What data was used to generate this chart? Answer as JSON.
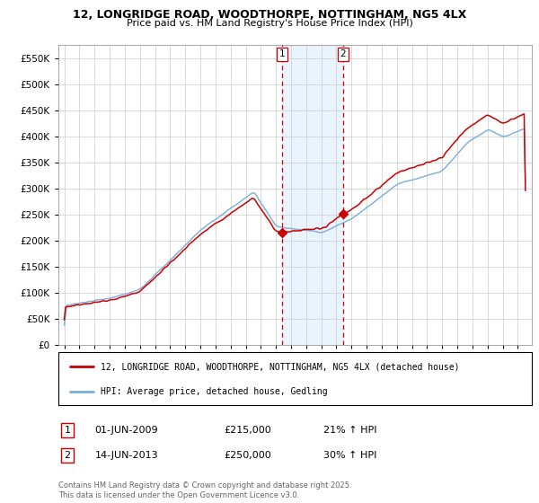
{
  "title": "12, LONGRIDGE ROAD, WOODTHORPE, NOTTINGHAM, NG5 4LX",
  "subtitle": "Price paid vs. HM Land Registry's House Price Index (HPI)",
  "legend_line1": "12, LONGRIDGE ROAD, WOODTHORPE, NOTTINGHAM, NG5 4LX (detached house)",
  "legend_line2": "HPI: Average price, detached house, Gedling",
  "transaction1_date": "01-JUN-2009",
  "transaction1_price": 215000,
  "transaction1_label": "21% ↑ HPI",
  "transaction2_date": "14-JUN-2013",
  "transaction2_price": 250000,
  "transaction2_label": "30% ↑ HPI",
  "footer": "Contains HM Land Registry data © Crown copyright and database right 2025.\nThis data is licensed under the Open Government Licence v3.0.",
  "house_color": "#cc0000",
  "hpi_color": "#7aaddc",
  "background_color": "#ffffff",
  "grid_color": "#cccccc",
  "ylim": [
    0,
    575000
  ],
  "yticks": [
    0,
    50000,
    100000,
    150000,
    200000,
    250000,
    300000,
    350000,
    400000,
    450000,
    500000,
    550000
  ],
  "marker1_x": 2009.42,
  "marker2_x": 2013.45,
  "shaded_color": "#ddeeff"
}
